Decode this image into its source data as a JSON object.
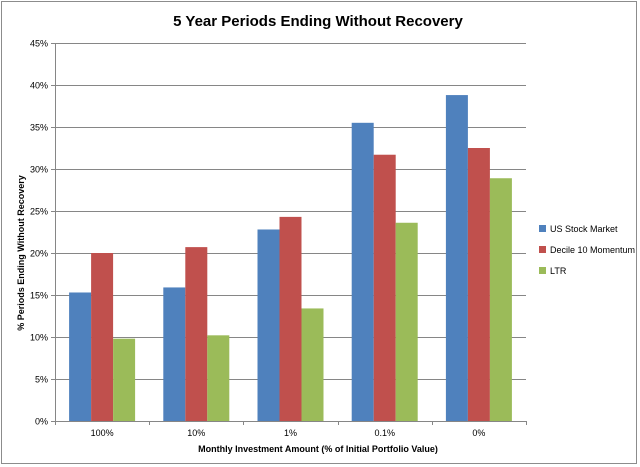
{
  "chart_data": {
    "type": "bar",
    "title": "5 Year Periods Ending Without Recovery",
    "xlabel": "Monthly Investment Amount (% of Initial Portfolio Value)",
    "ylabel": "% Periods Ending Without Recovery",
    "categories": [
      "100%",
      "10%",
      "1%",
      "0.1%",
      "0%"
    ],
    "ylim": [
      0,
      45
    ],
    "yticks": [
      0,
      5,
      10,
      15,
      20,
      25,
      30,
      35,
      40,
      45
    ],
    "ytick_labels": [
      "0%",
      "5%",
      "10%",
      "15%",
      "20%",
      "25%",
      "30%",
      "35%",
      "40%",
      "45%"
    ],
    "grid": true,
    "legend_position": "right",
    "series": [
      {
        "name": "US Stock Market",
        "color": "#4f81bd",
        "values": [
          15.3,
          15.9,
          22.8,
          35.5,
          38.8
        ]
      },
      {
        "name": "Decile 10 Momentum",
        "color": "#c0504d",
        "values": [
          20.0,
          20.7,
          24.3,
          31.7,
          32.5
        ]
      },
      {
        "name": "LTR",
        "color": "#9bbb59",
        "values": [
          9.8,
          10.2,
          13.4,
          23.6,
          28.9
        ]
      }
    ]
  }
}
